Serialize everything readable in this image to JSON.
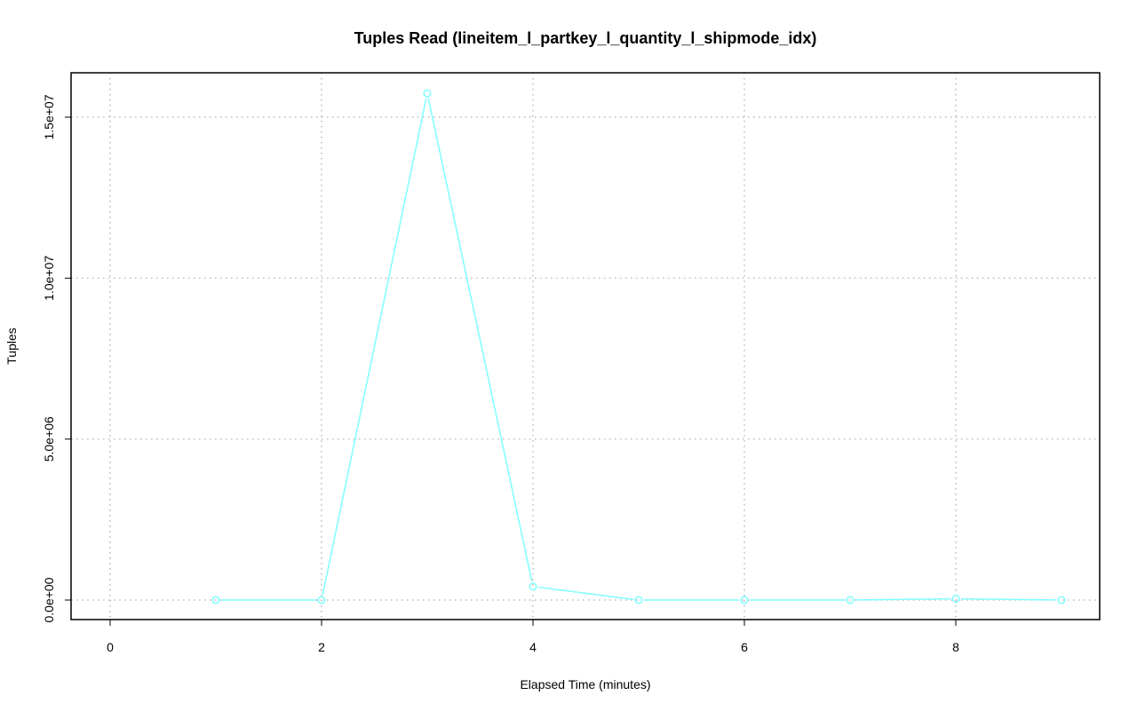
{
  "chart_data": {
    "type": "line",
    "title": "Tuples Read (lineitem_l_partkey_l_quantity_l_shipmode_idx)",
    "xlabel": "Elapsed Time (minutes)",
    "ylabel": "Tuples",
    "xlim": [
      0,
      9
    ],
    "ylim": [
      0,
      15750000
    ],
    "x_ticks": [
      0,
      2,
      4,
      6,
      8
    ],
    "x_tick_labels": [
      "0",
      "2",
      "4",
      "6",
      "8"
    ],
    "y_ticks": [
      0,
      5000000,
      10000000,
      15000000
    ],
    "y_tick_labels": [
      "0.0e+00",
      "5.0e+06",
      "1.0e+07",
      "1.5e+07"
    ],
    "grid": true,
    "series": [
      {
        "color": "#80ffff",
        "x": [
          1,
          2,
          3,
          4,
          5,
          6,
          7,
          8,
          9
        ],
        "y": [
          0,
          0,
          15740000,
          420000,
          0,
          0,
          0,
          40000,
          0
        ]
      }
    ]
  }
}
